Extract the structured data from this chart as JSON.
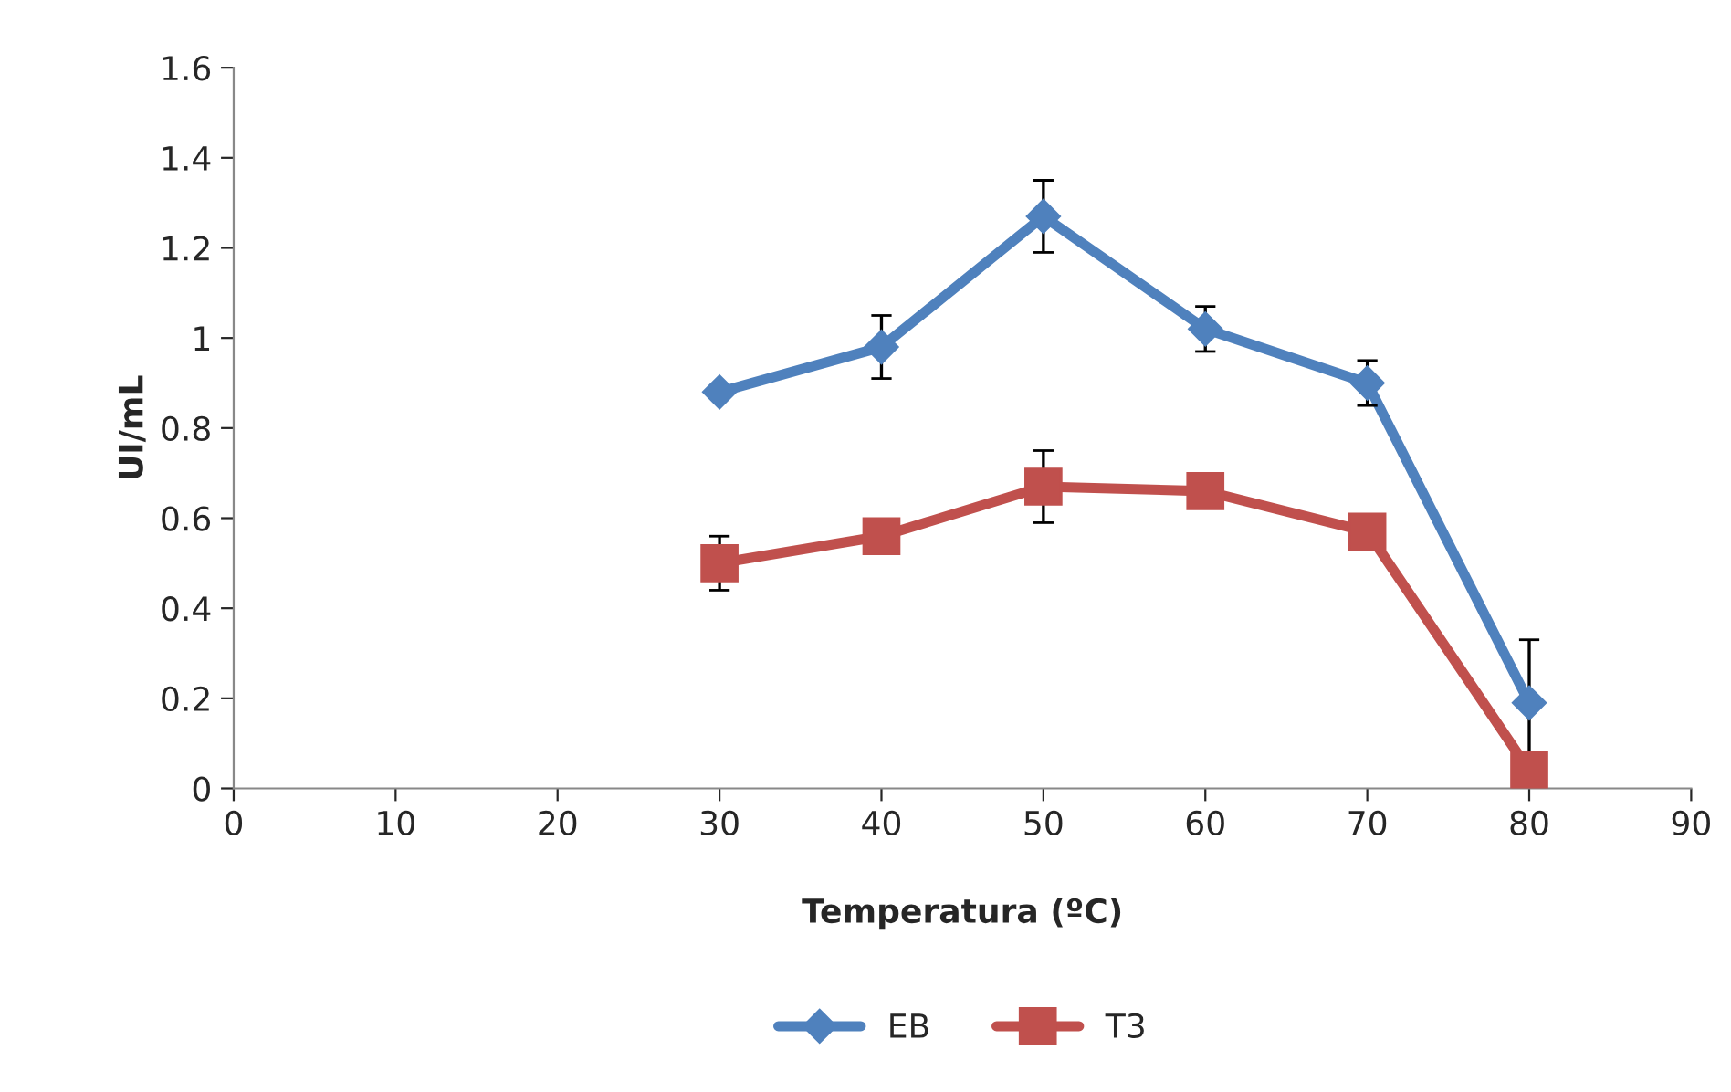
{
  "chart_data": {
    "type": "line",
    "xlabel": "Temperatura (ºC)",
    "ylabel": "UI/mL",
    "x": [
      30,
      40,
      50,
      60,
      70,
      80
    ],
    "series": [
      {
        "name": "EB",
        "color": "#4f81bd",
        "marker": "diamond",
        "values": [
          0.88,
          0.98,
          1.27,
          1.02,
          0.9,
          0.19
        ],
        "errors": [
          null,
          0.07,
          0.08,
          0.05,
          0.05,
          0.14
        ]
      },
      {
        "name": "T3",
        "color": "#c0504d",
        "marker": "square",
        "values": [
          0.5,
          0.56,
          0.67,
          0.66,
          0.57,
          0.04
        ],
        "errors": [
          0.06,
          null,
          0.08,
          null,
          null,
          null
        ]
      }
    ],
    "xlim": [
      0,
      90
    ],
    "xticks": [
      0,
      10,
      20,
      30,
      40,
      50,
      60,
      70,
      80,
      90
    ],
    "ylim": [
      0,
      1.6
    ],
    "yticks": [
      0,
      {
        "value": 0.2,
        "label": "0.2"
      },
      {
        "value": 0.4,
        "label": "0.4"
      },
      {
        "value": 0.6,
        "label": "0.6"
      },
      {
        "value": 0.8,
        "label": "0.8"
      },
      1,
      {
        "value": 1.2,
        "label": "1.2"
      },
      {
        "value": 1.4,
        "label": "1.4"
      },
      {
        "value": 1.6,
        "label": "1.6"
      }
    ],
    "grid": false,
    "legend": "bottom",
    "line_style": "solid"
  }
}
